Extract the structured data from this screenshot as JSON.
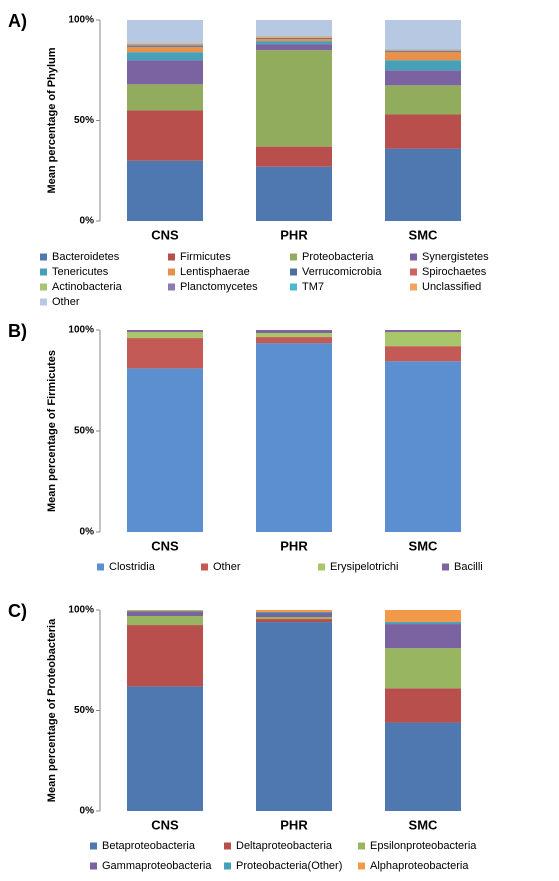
{
  "chart_data": [
    {
      "type": "stacked_bar",
      "panel_label": "A)",
      "y_label": "Mean percentage of Phylum",
      "categories": [
        "CNS",
        "PHR",
        "SMC"
      ],
      "ylim": [
        0,
        100
      ],
      "yticks": [
        {
          "value": 0,
          "label": "0%"
        },
        {
          "value": 50,
          "label": "50%"
        },
        {
          "value": 100,
          "label": "100%"
        }
      ],
      "series": [
        {
          "name": "Bacteroidetes",
          "color": "#5078b0",
          "values": [
            30,
            27,
            36
          ]
        },
        {
          "name": "Firmicutes",
          "color": "#b84f4c",
          "values": [
            25,
            10,
            17
          ]
        },
        {
          "name": "Proteobacteria",
          "color": "#92ac5d",
          "values": [
            13,
            48,
            14.5
          ]
        },
        {
          "name": "Synergistetes",
          "color": "#7a63a0",
          "values": [
            12,
            3,
            7.5
          ]
        },
        {
          "name": "Tenericutes",
          "color": "#45a0b8",
          "values": [
            4,
            1.5,
            5
          ]
        },
        {
          "name": "Lentisphaerae",
          "color": "#e8914a",
          "values": [
            2.5,
            1,
            4
          ]
        },
        {
          "name": "Verrucomicrobia",
          "color": "#4a6f9f",
          "values": [
            0.5,
            0.3,
            0.3
          ]
        },
        {
          "name": "Spirochaetes",
          "color": "#c96562",
          "values": [
            0.5,
            0.3,
            0.3
          ]
        },
        {
          "name": "Actinobacteria",
          "color": "#a6c56e",
          "values": [
            0.3,
            0.2,
            0.3
          ]
        },
        {
          "name": "Planctomycetes",
          "color": "#8e7ab0",
          "values": [
            0.2,
            0.1,
            0.2
          ]
        },
        {
          "name": "TM7",
          "color": "#4cb8d0",
          "values": [
            0.2,
            0.1,
            0.2
          ]
        },
        {
          "name": "Unclassified",
          "color": "#f2a35e",
          "values": [
            0.3,
            0.5,
            0.2
          ]
        },
        {
          "name": "Other",
          "color": "#b7c8e2",
          "values": [
            11.5,
            8,
            14.5
          ]
        }
      ]
    },
    {
      "type": "stacked_bar",
      "panel_label": "B)",
      "y_label": "Mean percentage of Firmicutes",
      "categories": [
        "CNS",
        "PHR",
        "SMC"
      ],
      "ylim": [
        0,
        100
      ],
      "yticks": [
        {
          "value": 0,
          "label": "0%"
        },
        {
          "value": 50,
          "label": "50%"
        },
        {
          "value": 100,
          "label": "100%"
        }
      ],
      "series": [
        {
          "name": "Clostridia",
          "color": "#5b8fd0",
          "values": [
            81,
            93.5,
            84.5
          ]
        },
        {
          "name": "Other",
          "color": "#c45a55",
          "values": [
            15,
            3,
            7.5
          ]
        },
        {
          "name": "Erysipelotrichi",
          "color": "#a8c66a",
          "values": [
            3,
            2,
            7
          ]
        },
        {
          "name": "Bacilli",
          "color": "#8064a2",
          "values": [
            1,
            1.5,
            1
          ]
        }
      ]
    },
    {
      "type": "stacked_bar",
      "panel_label": "C)",
      "y_label": "Mean percentage of Proteobacteria",
      "categories": [
        "CNS",
        "PHR",
        "SMC"
      ],
      "ylim": [
        0,
        100
      ],
      "yticks": [
        {
          "value": 0,
          "label": "0%"
        },
        {
          "value": 50,
          "label": "50%"
        },
        {
          "value": 100,
          "label": "100%"
        }
      ],
      "series": [
        {
          "name": "Betaproteobacteria",
          "color": "#5078b0",
          "values": [
            62,
            94,
            44
          ]
        },
        {
          "name": "Deltaproteobacteria",
          "color": "#b84f4c",
          "values": [
            30.5,
            1.5,
            17
          ]
        },
        {
          "name": "Epsilonproteobacteria",
          "color": "#98b661",
          "values": [
            4.5,
            1,
            20
          ]
        },
        {
          "name": "Gammaproteobacteria",
          "color": "#7a63a0",
          "values": [
            2,
            2,
            12
          ]
        },
        {
          "name": "Proteobacteria(Other)",
          "color": "#45a0b8",
          "values": [
            0.5,
            0.5,
            1
          ]
        },
        {
          "name": "Alphaproteobacteria",
          "color": "#f2994a",
          "values": [
            0.5,
            1,
            6
          ]
        }
      ]
    }
  ]
}
